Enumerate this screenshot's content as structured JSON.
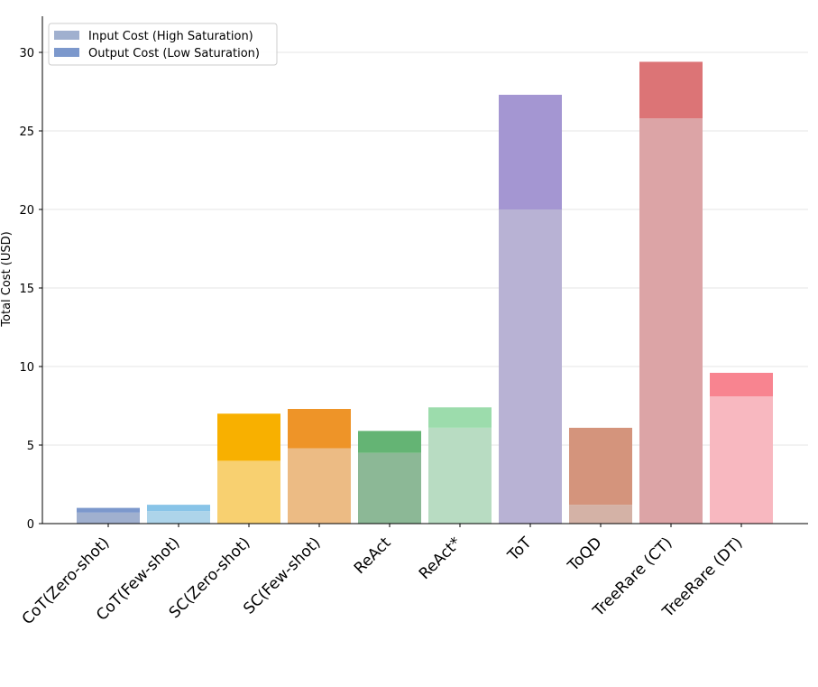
{
  "chart_data": {
    "type": "bar",
    "stacked": true,
    "title": "",
    "xlabel": "",
    "ylabel": "Total Cost (USD)",
    "ylim": [
      0,
      32.3
    ],
    "yticks": [
      0,
      5,
      10,
      15,
      20,
      25,
      30
    ],
    "grid": "y",
    "legend_position": "top-left",
    "categories": [
      "CoT(Zero-shot)",
      "CoT(Few-shot)",
      "SC(Zero-shot)",
      "SC(Few-shot)",
      "ReAct",
      "ReAct*",
      "ToT",
      "ToQD",
      "TreeRare (CT)",
      "TreeRare (DT)"
    ],
    "series": [
      {
        "name": "Input Cost (High Saturation)",
        "values": [
          0.7,
          0.8,
          4.0,
          4.8,
          4.5,
          6.1,
          20.0,
          1.2,
          25.8,
          8.1
        ],
        "colors": [
          "#a0b0cf",
          "#add4ea",
          "#f8d070",
          "#ecbb84",
          "#8cb896",
          "#b8dcc2",
          "#b8b2d4",
          "#d4b2a6",
          "#dca4a6",
          "#f8b8c0"
        ]
      },
      {
        "name": "Output Cost (Low Saturation)",
        "values": [
          0.3,
          0.4,
          3.0,
          2.5,
          1.4,
          1.3,
          7.3,
          4.9,
          3.6,
          1.5
        ],
        "colors": [
          "#7c98cc",
          "#88c4e8",
          "#f8b000",
          "#ee9428",
          "#64b474",
          "#9cdcac",
          "#a496d2",
          "#d4947c",
          "#dc7476",
          "#f88490"
        ]
      }
    ],
    "legend": [
      {
        "label": "Input Cost (High Saturation)",
        "color": "#a0b0cf"
      },
      {
        "label": "Output Cost (Low Saturation)",
        "color": "#7c98cc"
      }
    ]
  }
}
